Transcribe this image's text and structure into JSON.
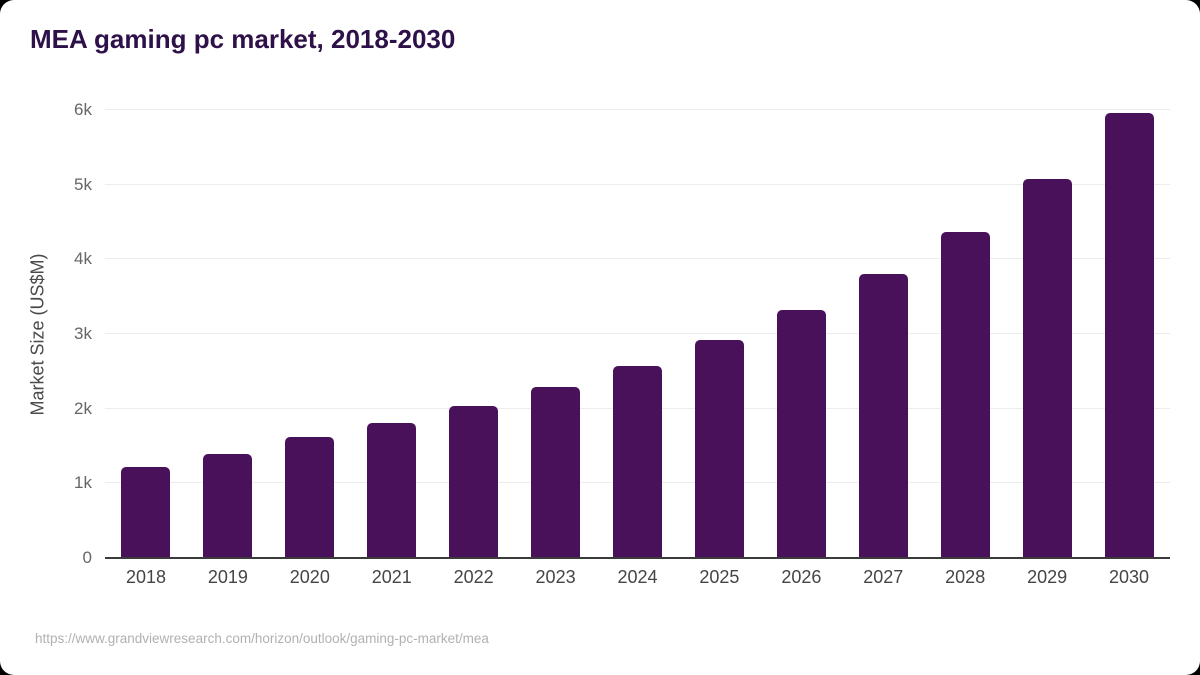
{
  "page": {
    "background_color": "#000000",
    "card_color": "#ffffff"
  },
  "header": {
    "title": "MEA gaming pc market, 2018-2030"
  },
  "footer": {
    "source_url": "https://www.grandviewresearch.com/horizon/outlook/gaming-pc-market/mea"
  },
  "chart_data": {
    "type": "bar",
    "title": "MEA gaming pc market, 2018-2030",
    "categories": [
      "2018",
      "2019",
      "2020",
      "2021",
      "2022",
      "2023",
      "2024",
      "2025",
      "2026",
      "2027",
      "2028",
      "2029",
      "2030"
    ],
    "values": [
      1225,
      1390,
      1620,
      1805,
      2035,
      2295,
      2575,
      2925,
      3320,
      3805,
      4360,
      5075,
      5960
    ],
    "xlabel": "",
    "ylabel": "Market Size (US$M)",
    "ylim": [
      0,
      6000
    ],
    "yticks": [
      {
        "value": 0,
        "label": "0"
      },
      {
        "value": 1000,
        "label": "1k"
      },
      {
        "value": 2000,
        "label": "2k"
      },
      {
        "value": 3000,
        "label": "3k"
      },
      {
        "value": 4000,
        "label": "4k"
      },
      {
        "value": 5000,
        "label": "5k"
      },
      {
        "value": 6000,
        "label": "6k"
      }
    ],
    "grid": true,
    "legend": false,
    "colors": {
      "bar": "#481159",
      "title_text": "#2e1148",
      "gridline": "#ededed",
      "axis_line": "#3b3b3b",
      "tick_text": "#666666",
      "x_tick_text": "#454545",
      "source_text": "#b1b1b1"
    }
  }
}
